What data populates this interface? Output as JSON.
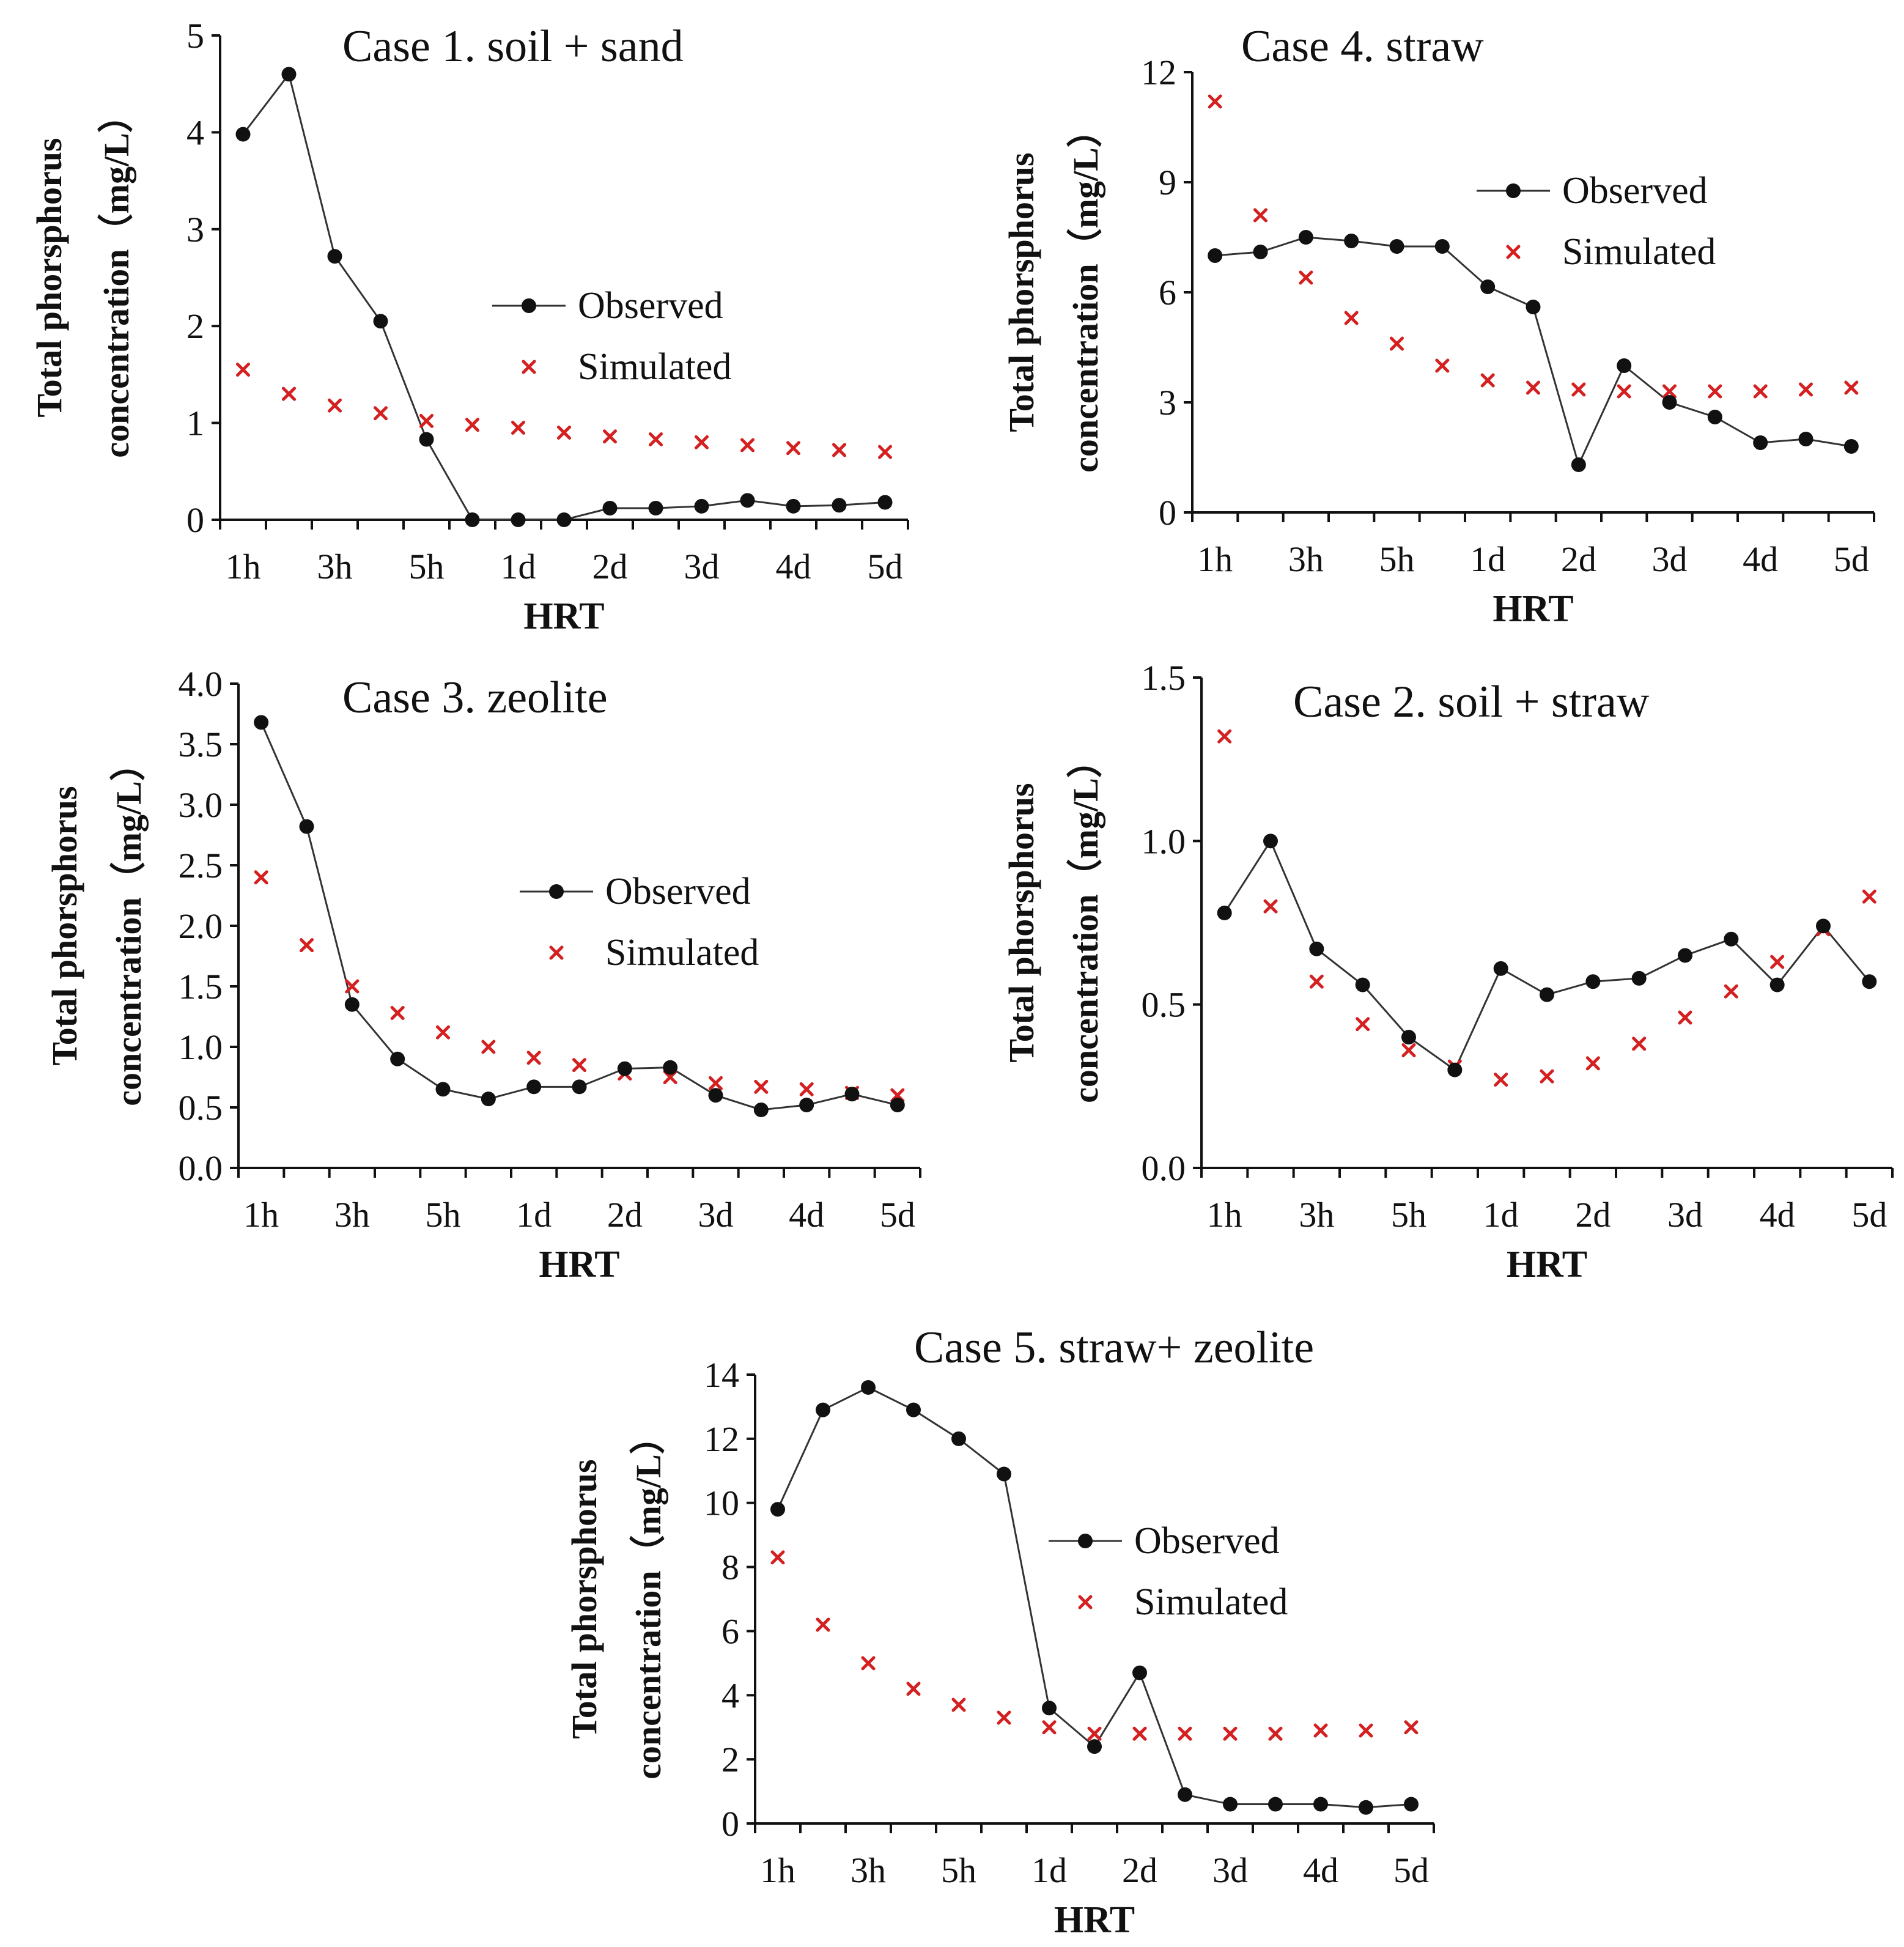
{
  "chart_data": [
    {
      "type": "line",
      "title": "Case 1. soil + sand",
      "xlabel": "HRT",
      "ylabel_line1": "Total phorsphorus",
      "ylabel_line2": "concentration（mg/L）",
      "categories": [
        "1h",
        "2h",
        "3h",
        "4h",
        "5h",
        "6h",
        "1d",
        "1.5d",
        "2d",
        "2.5d",
        "3d",
        "3.5d",
        "4d",
        "4.5d",
        "5d"
      ],
      "xtick_labels": [
        "1h",
        "",
        "3h",
        "",
        "5h",
        "",
        "1d",
        "",
        "2d",
        "",
        "3d",
        "",
        "4d",
        "",
        "5d"
      ],
      "ylim": [
        0,
        5
      ],
      "yticks": [
        "0",
        "1",
        "2",
        "3",
        "4",
        "5"
      ],
      "series": [
        {
          "name": "Observed",
          "style": "line-marker",
          "values": [
            3.98,
            4.6,
            2.72,
            2.05,
            0.83,
            0.0,
            0.0,
            0.0,
            0.12,
            0.12,
            0.14,
            0.2,
            0.14,
            0.15,
            0.18
          ]
        },
        {
          "name": "Simulated",
          "style": "x-marker",
          "values": [
            1.55,
            1.3,
            1.18,
            1.1,
            1.02,
            0.98,
            0.95,
            0.9,
            0.86,
            0.83,
            0.8,
            0.77,
            0.74,
            0.72,
            0.7
          ]
        }
      ],
      "legend": [
        "Observed",
        "Simulated"
      ]
    },
    {
      "type": "line",
      "title": "Case 4. straw",
      "xlabel": "HRT",
      "ylabel_line1": "Total phorsphorus",
      "ylabel_line2": "concentration（mg/L）",
      "categories": [
        "1h",
        "2h",
        "3h",
        "4h",
        "5h",
        "6h",
        "1d",
        "1.5d",
        "2d",
        "2.5d",
        "3d",
        "3.5d",
        "4d",
        "4.5d",
        "5d"
      ],
      "xtick_labels": [
        "1h",
        "",
        "3h",
        "",
        "5h",
        "",
        "1d",
        "",
        "2d",
        "",
        "3d",
        "",
        "4d",
        "",
        "5d"
      ],
      "ylim": [
        0,
        12
      ],
      "yticks": [
        "0",
        "3",
        "6",
        "9",
        "12"
      ],
      "series": [
        {
          "name": "Observed",
          "style": "line-marker",
          "values": [
            7.0,
            7.1,
            7.5,
            7.4,
            7.25,
            7.25,
            6.15,
            5.6,
            1.3,
            4.0,
            3.0,
            2.6,
            1.9,
            2.0,
            1.8
          ]
        },
        {
          "name": "Simulated",
          "style": "x-marker",
          "values": [
            11.2,
            8.1,
            6.4,
            5.3,
            4.6,
            4.0,
            3.6,
            3.4,
            3.35,
            3.3,
            3.3,
            3.3,
            3.3,
            3.35,
            3.4
          ]
        }
      ],
      "legend": [
        "Observed",
        "Simulated"
      ]
    },
    {
      "type": "line",
      "title": "Case 3. zeolite",
      "xlabel": "HRT",
      "ylabel_line1": "Total phorsphorus",
      "ylabel_line2": "concentration（mg/L）",
      "categories": [
        "1h",
        "2h",
        "3h",
        "4h",
        "5h",
        "6h",
        "1d",
        "1.5d",
        "2d",
        "2.5d",
        "3d",
        "3.5d",
        "4d",
        "4.5d",
        "5d"
      ],
      "xtick_labels": [
        "1h",
        "",
        "3h",
        "",
        "5h",
        "",
        "1d",
        "",
        "2d",
        "",
        "3d",
        "",
        "4d",
        "",
        "5d"
      ],
      "ylim": [
        0,
        4
      ],
      "yticks": [
        "0.0",
        "0.5",
        "1.0",
        "1.5",
        "2.0",
        "2.5",
        "3.0",
        "3.5",
        "4.0"
      ],
      "series": [
        {
          "name": "Observed",
          "style": "line-marker",
          "values": [
            3.68,
            2.82,
            1.35,
            0.9,
            0.65,
            0.57,
            0.67,
            0.67,
            0.82,
            0.83,
            0.6,
            0.48,
            0.52,
            0.61,
            0.52
          ]
        },
        {
          "name": "Simulated",
          "style": "x-marker",
          "values": [
            2.4,
            1.84,
            1.5,
            1.28,
            1.12,
            1.0,
            0.91,
            0.85,
            0.78,
            0.75,
            0.7,
            0.67,
            0.65,
            0.62,
            0.6
          ]
        }
      ],
      "legend": [
        "Observed",
        "Simulated"
      ]
    },
    {
      "type": "line",
      "title": "Case 2. soil + straw",
      "xlabel": "HRT",
      "ylabel_line1": "Total phorsphorus",
      "ylabel_line2": "concentration（mg/L）",
      "categories": [
        "1h",
        "2h",
        "3h",
        "4h",
        "5h",
        "6h",
        "1d",
        "1.5d",
        "2d",
        "2.5d",
        "3d",
        "3.5d",
        "4d",
        "4.5d",
        "5d"
      ],
      "xtick_labels": [
        "1h",
        "",
        "3h",
        "",
        "5h",
        "",
        "1d",
        "",
        "2d",
        "",
        "3d",
        "",
        "4d",
        "",
        "5d"
      ],
      "ylim": [
        0,
        1.5
      ],
      "yticks": [
        "0.0",
        "0.5",
        "1.0",
        "1.5"
      ],
      "series": [
        {
          "name": "Observed",
          "style": "line-marker",
          "values": [
            0.78,
            1.0,
            0.67,
            0.56,
            0.4,
            0.3,
            0.61,
            0.53,
            0.57,
            0.58,
            0.65,
            0.7,
            0.56,
            0.74,
            0.57
          ]
        },
        {
          "name": "Simulated",
          "style": "x-marker",
          "values": [
            1.32,
            0.8,
            0.57,
            0.44,
            0.36,
            0.31,
            0.27,
            0.28,
            0.32,
            0.38,
            0.46,
            0.54,
            0.63,
            0.73,
            0.83
          ]
        }
      ],
      "legend": []
    },
    {
      "type": "line",
      "title": "Case 5. straw+ zeolite",
      "xlabel": "HRT",
      "ylabel_line1": "Total phorsphorus",
      "ylabel_line2": "concentration（mg/L）",
      "categories": [
        "1h",
        "2h",
        "3h",
        "4h",
        "5h",
        "6h",
        "1d",
        "1.5d",
        "2d",
        "2.5d",
        "3d",
        "3.5d",
        "4d",
        "4.5d",
        "5d"
      ],
      "xtick_labels": [
        "1h",
        "",
        "3h",
        "",
        "5h",
        "",
        "1d",
        "",
        "2d",
        "",
        "3d",
        "",
        "4d",
        "",
        "5d"
      ],
      "ylim": [
        0,
        14
      ],
      "yticks": [
        "0",
        "2",
        "4",
        "6",
        "8",
        "10",
        "12",
        "14"
      ],
      "series": [
        {
          "name": "Observed",
          "style": "line-marker",
          "values": [
            9.8,
            12.9,
            13.6,
            12.9,
            12.0,
            10.9,
            3.6,
            2.4,
            4.7,
            0.9,
            0.6,
            0.6,
            0.6,
            0.5,
            0.6
          ]
        },
        {
          "name": "Simulated",
          "style": "x-marker",
          "values": [
            8.3,
            6.2,
            5.0,
            4.2,
            3.7,
            3.3,
            3.0,
            2.8,
            2.8,
            2.8,
            2.8,
            2.8,
            2.9,
            2.9,
            3.0
          ]
        }
      ],
      "legend": [
        "Observed",
        "Simulated"
      ]
    }
  ]
}
